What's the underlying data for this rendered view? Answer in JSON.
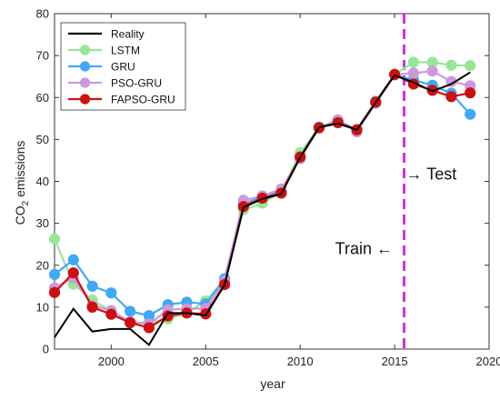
{
  "chart_data": {
    "type": "line",
    "xlabel": "year",
    "ylabel_main": "CO",
    "ylabel_sub": "2",
    "ylabel_rest": " emissions",
    "xlim": [
      1997,
      2020
    ],
    "ylim": [
      0,
      80
    ],
    "xticks": [
      2000,
      2005,
      2010,
      2015,
      2020
    ],
    "yticks": [
      0,
      10,
      20,
      30,
      40,
      50,
      60,
      70,
      80
    ],
    "grid": false,
    "legend_position": "top-left",
    "x": [
      1997,
      1998,
      1999,
      2000,
      2001,
      2002,
      2003,
      2004,
      2005,
      2006,
      2007,
      2008,
      2009,
      2010,
      2011,
      2012,
      2013,
      2014,
      2015,
      2016,
      2017,
      2018,
      2019
    ],
    "series": [
      {
        "name": "Reality",
        "color": "#000000",
        "marker": false,
        "values": [
          2.8,
          9.6,
          4.2,
          4.8,
          4.8,
          1.0,
          8.6,
          8.6,
          8.0,
          15.3,
          33.8,
          35.8,
          37.0,
          45.7,
          52.9,
          53.8,
          52.3,
          58.8,
          65.3,
          63.6,
          61.5,
          63.2,
          66.0
        ]
      },
      {
        "name": "LSTM",
        "color": "#99e699",
        "marker": true,
        "values": [
          26.3,
          15.5,
          11.7,
          9.0,
          6.2,
          6.4,
          7.2,
          8.6,
          11.5,
          16.4,
          33.2,
          34.8,
          37.5,
          46.8,
          52.9,
          54.0,
          52.3,
          59.2,
          65.5,
          68.4,
          68.4,
          67.7,
          67.6
        ]
      },
      {
        "name": "GRU",
        "color": "#3fa9f5",
        "marker": true,
        "values": [
          17.8,
          21.3,
          15.0,
          13.4,
          9.0,
          8.0,
          10.6,
          11.2,
          10.8,
          16.8,
          34.5,
          36.5,
          37.5,
          45.8,
          52.9,
          54.5,
          52.3,
          58.9,
          65.4,
          64.2,
          62.9,
          61.0,
          56.0
        ]
      },
      {
        "name": "PSO-GRU",
        "color": "#cc99dd",
        "marker": true,
        "values": [
          14.6,
          17.0,
          10.4,
          9.2,
          6.5,
          6.0,
          9.4,
          9.6,
          9.7,
          16.2,
          35.5,
          36.5,
          38.2,
          45.4,
          52.7,
          54.7,
          51.8,
          58.6,
          65.5,
          65.8,
          66.3,
          63.8,
          62.8
        ]
      },
      {
        "name": "FAPSO-GRU",
        "color": "#cc1111",
        "marker": true,
        "values": [
          13.5,
          18.2,
          10.0,
          8.3,
          6.3,
          5.1,
          7.9,
          8.6,
          8.4,
          15.4,
          34.0,
          36.0,
          37.2,
          45.8,
          52.8,
          54.0,
          52.3,
          58.9,
          65.5,
          63.2,
          61.7,
          60.2,
          61.1
        ]
      }
    ],
    "split_year": 2015.5,
    "split_color": "#cc33dd",
    "annotations": [
      {
        "text": "→ Test",
        "x": 2015.6,
        "y": 40.4
      },
      {
        "text": "Train ←",
        "x": 2014.9,
        "y": 22.7
      }
    ]
  }
}
